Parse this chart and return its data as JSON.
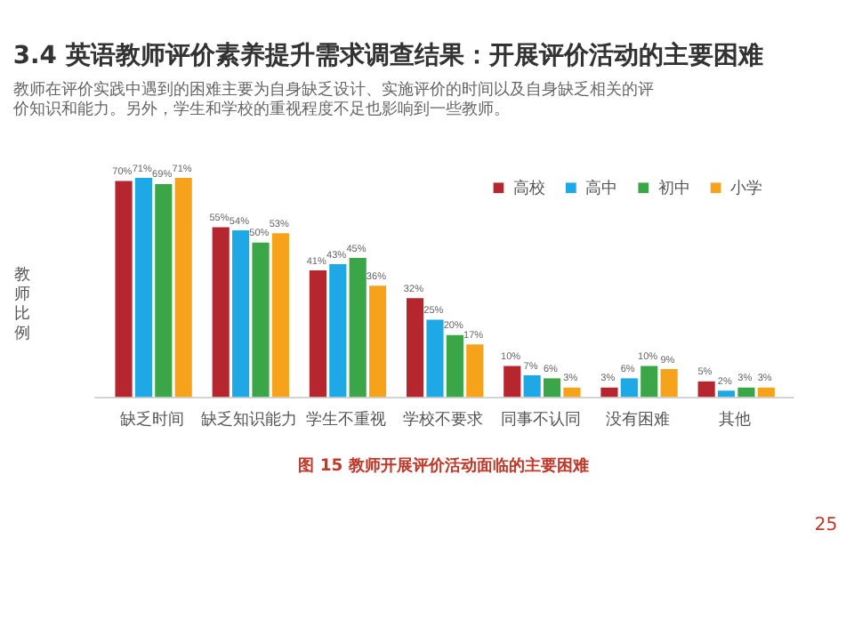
{
  "chart_data": {
    "type": "bar",
    "title": "3.4 英语教师评价素养提升需求调查结果：开展评价活动的主要困难",
    "subtitle": "教师在评价实践中遇到的困难主要为自身缺乏设计、实施评价的时间以及自身缺乏相关的评价知识和能力。另外，学生和学校的重视程度不足也影响到一些教师。",
    "ylabel": "教师比例",
    "categories": [
      "缺乏时间",
      "缺乏知识能力",
      "学生不重视",
      "学校不要求",
      "同事不认同",
      "没有困难",
      "其他"
    ],
    "series": [
      {
        "name": "高校",
        "color": "#b5262e",
        "values": [
          70,
          55,
          41,
          32,
          10,
          3,
          5
        ],
        "value_labels": [
          "70%",
          "55%",
          "41%",
          "32%",
          "10%",
          "3%",
          "5%"
        ]
      },
      {
        "name": "高中",
        "color": "#1ea8e6",
        "values": [
          71,
          54,
          43,
          25,
          7,
          6,
          2
        ],
        "value_labels": [
          "71%",
          "54%",
          "43%",
          "25%",
          "7%",
          "6%",
          "2%"
        ]
      },
      {
        "name": "初中",
        "color": "#3aa648",
        "values": [
          69,
          50,
          45,
          20,
          6,
          10,
          3
        ],
        "value_labels": [
          "69%",
          "50%",
          "45%",
          "20%",
          "6%",
          "10%",
          "3%"
        ]
      },
      {
        "name": "小学",
        "color": "#f7a21b",
        "values": [
          71,
          53,
          36,
          17,
          3,
          9,
          3
        ],
        "value_labels": [
          "71%",
          "53%",
          "36%",
          "17%",
          "3%",
          "9%",
          "3%"
        ]
      }
    ],
    "legend": "top right",
    "grid": false,
    "annotations": [
      "图 15  教师开展评价活动面临的主要困难",
      "25"
    ]
  }
}
